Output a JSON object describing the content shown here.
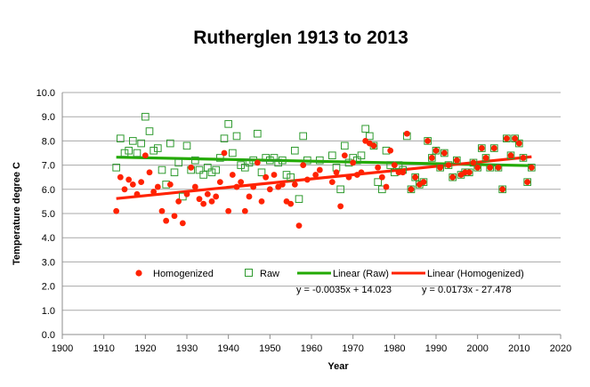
{
  "chart_data": {
    "type": "scatter",
    "title": "Rutherglen 1913 to 2013",
    "xlabel": "Year",
    "ylabel": "Temperature degree C",
    "xlim": [
      1900,
      2020
    ],
    "ylim": [
      0,
      10
    ],
    "x_ticks": [
      "1900",
      "1910",
      "1920",
      "1930",
      "1940",
      "1950",
      "1960",
      "1970",
      "1980",
      "1990",
      "2000",
      "2010",
      "2020"
    ],
    "y_ticks": [
      "0.0",
      "1.0",
      "2.0",
      "3.0",
      "4.0",
      "5.0",
      "6.0",
      "7.0",
      "8.0",
      "9.0",
      "10.0"
    ],
    "grid": true,
    "legend_position": "bottom-inside",
    "series": [
      {
        "name": "Homogenized",
        "marker": "filled-circle",
        "color": "#ff2200",
        "points": [
          [
            1913,
            5.1
          ],
          [
            1914,
            6.5
          ],
          [
            1915,
            6.0
          ],
          [
            1916,
            6.4
          ],
          [
            1917,
            6.2
          ],
          [
            1918,
            5.8
          ],
          [
            1919,
            6.3
          ],
          [
            1920,
            7.4
          ],
          [
            1921,
            6.7
          ],
          [
            1922,
            5.9
          ],
          [
            1923,
            6.1
          ],
          [
            1924,
            5.1
          ],
          [
            1925,
            4.7
          ],
          [
            1926,
            6.2
          ],
          [
            1927,
            4.9
          ],
          [
            1928,
            5.5
          ],
          [
            1929,
            4.6
          ],
          [
            1930,
            5.8
          ],
          [
            1931,
            6.9
          ],
          [
            1932,
            6.1
          ],
          [
            1933,
            5.6
          ],
          [
            1934,
            5.4
          ],
          [
            1935,
            5.8
          ],
          [
            1936,
            5.5
          ],
          [
            1937,
            5.7
          ],
          [
            1938,
            6.3
          ],
          [
            1939,
            7.5
          ],
          [
            1940,
            5.1
          ],
          [
            1941,
            6.6
          ],
          [
            1942,
            6.1
          ],
          [
            1943,
            6.3
          ],
          [
            1944,
            5.1
          ],
          [
            1945,
            5.7
          ],
          [
            1946,
            6.1
          ],
          [
            1947,
            7.1
          ],
          [
            1948,
            5.5
          ],
          [
            1949,
            6.5
          ],
          [
            1950,
            6.0
          ],
          [
            1951,
            6.6
          ],
          [
            1952,
            6.1
          ],
          [
            1953,
            6.2
          ],
          [
            1954,
            5.5
          ],
          [
            1955,
            5.4
          ],
          [
            1956,
            6.2
          ],
          [
            1957,
            4.5
          ],
          [
            1958,
            7.0
          ],
          [
            1959,
            6.4
          ],
          [
            1961,
            6.6
          ],
          [
            1962,
            6.8
          ],
          [
            1965,
            6.3
          ],
          [
            1966,
            6.7
          ],
          [
            1967,
            5.3
          ],
          [
            1968,
            7.4
          ],
          [
            1969,
            6.5
          ],
          [
            1970,
            7.1
          ],
          [
            1971,
            6.6
          ],
          [
            1972,
            6.7
          ],
          [
            1973,
            8.0
          ],
          [
            1974,
            7.9
          ],
          [
            1975,
            7.8
          ],
          [
            1976,
            6.9
          ],
          [
            1977,
            6.5
          ],
          [
            1978,
            6.1
          ],
          [
            1979,
            7.6
          ],
          [
            1980,
            7.0
          ],
          [
            1981,
            6.7
          ],
          [
            1982,
            6.7
          ],
          [
            1983,
            8.3
          ],
          [
            1984,
            6.0
          ],
          [
            1985,
            6.5
          ],
          [
            1986,
            6.2
          ],
          [
            1987,
            6.3
          ],
          [
            1988,
            8.0
          ],
          [
            1989,
            7.3
          ],
          [
            1990,
            7.6
          ],
          [
            1991,
            6.9
          ],
          [
            1992,
            7.5
          ],
          [
            1993,
            7.0
          ],
          [
            1994,
            6.5
          ],
          [
            1995,
            7.2
          ],
          [
            1996,
            6.6
          ],
          [
            1997,
            6.7
          ],
          [
            1998,
            6.7
          ],
          [
            1999,
            7.1
          ],
          [
            2000,
            6.9
          ],
          [
            2001,
            7.7
          ],
          [
            2002,
            7.3
          ],
          [
            2003,
            6.9
          ],
          [
            2004,
            7.7
          ],
          [
            2005,
            6.9
          ],
          [
            2006,
            6.0
          ],
          [
            2007,
            8.1
          ],
          [
            2008,
            7.4
          ],
          [
            2009,
            8.1
          ],
          [
            2010,
            7.9
          ],
          [
            2011,
            7.3
          ],
          [
            2012,
            6.3
          ],
          [
            2013,
            6.9
          ]
        ]
      },
      {
        "name": "Raw",
        "marker": "open-square",
        "color": "#2e9a2e",
        "points": [
          [
            1913,
            6.9
          ],
          [
            1914,
            8.1
          ],
          [
            1915,
            7.5
          ],
          [
            1916,
            7.6
          ],
          [
            1917,
            8.0
          ],
          [
            1918,
            7.5
          ],
          [
            1919,
            7.9
          ],
          [
            1920,
            9.0
          ],
          [
            1921,
            8.4
          ],
          [
            1922,
            7.6
          ],
          [
            1923,
            7.7
          ],
          [
            1924,
            6.8
          ],
          [
            1925,
            6.2
          ],
          [
            1926,
            7.9
          ],
          [
            1927,
            6.7
          ],
          [
            1928,
            7.1
          ],
          [
            1929,
            5.7
          ],
          [
            1930,
            7.8
          ],
          [
            1931,
            6.8
          ],
          [
            1932,
            7.2
          ],
          [
            1933,
            6.8
          ],
          [
            1934,
            6.6
          ],
          [
            1935,
            6.9
          ],
          [
            1936,
            6.7
          ],
          [
            1937,
            6.8
          ],
          [
            1938,
            7.3
          ],
          [
            1939,
            8.1
          ],
          [
            1940,
            8.7
          ],
          [
            1941,
            7.5
          ],
          [
            1942,
            8.2
          ],
          [
            1943,
            7.0
          ],
          [
            1944,
            6.9
          ],
          [
            1945,
            7.1
          ],
          [
            1946,
            7.2
          ],
          [
            1947,
            8.3
          ],
          [
            1948,
            6.7
          ],
          [
            1949,
            7.3
          ],
          [
            1950,
            7.2
          ],
          [
            1951,
            7.3
          ],
          [
            1952,
            7.1
          ],
          [
            1953,
            7.2
          ],
          [
            1954,
            6.6
          ],
          [
            1955,
            6.5
          ],
          [
            1956,
            7.6
          ],
          [
            1957,
            5.6
          ],
          [
            1958,
            8.2
          ],
          [
            1959,
            7.2
          ],
          [
            1962,
            7.2
          ],
          [
            1965,
            7.4
          ],
          [
            1966,
            6.9
          ],
          [
            1967,
            6.0
          ],
          [
            1968,
            7.8
          ],
          [
            1969,
            7.1
          ],
          [
            1970,
            7.3
          ],
          [
            1971,
            7.2
          ],
          [
            1972,
            7.4
          ],
          [
            1973,
            8.5
          ],
          [
            1974,
            8.2
          ],
          [
            1975,
            7.8
          ],
          [
            1976,
            6.3
          ],
          [
            1977,
            6.0
          ],
          [
            1978,
            7.6
          ],
          [
            1979,
            7.0
          ],
          [
            1980,
            6.7
          ],
          [
            1981,
            7.0
          ],
          [
            1982,
            6.8
          ],
          [
            1983,
            8.2
          ],
          [
            1984,
            6.0
          ],
          [
            1985,
            6.5
          ],
          [
            1986,
            6.2
          ],
          [
            1987,
            6.3
          ],
          [
            1988,
            8.0
          ],
          [
            1989,
            7.3
          ],
          [
            1990,
            7.6
          ],
          [
            1991,
            6.9
          ],
          [
            1992,
            7.5
          ],
          [
            1993,
            7.0
          ],
          [
            1994,
            6.5
          ],
          [
            1995,
            7.2
          ],
          [
            1996,
            6.6
          ],
          [
            1997,
            6.7
          ],
          [
            1998,
            6.7
          ],
          [
            1999,
            7.1
          ],
          [
            2000,
            6.9
          ],
          [
            2001,
            7.7
          ],
          [
            2002,
            7.3
          ],
          [
            2003,
            6.9
          ],
          [
            2004,
            7.7
          ],
          [
            2005,
            6.9
          ],
          [
            2006,
            6.0
          ],
          [
            2007,
            8.1
          ],
          [
            2008,
            7.4
          ],
          [
            2009,
            8.1
          ],
          [
            2010,
            7.9
          ],
          [
            2011,
            7.3
          ],
          [
            2012,
            6.3
          ],
          [
            2013,
            6.9
          ]
        ]
      }
    ],
    "trendlines": [
      {
        "name": "Linear (Raw)",
        "slope": -0.0035,
        "intercept": 14.023,
        "x_range": [
          1913,
          2013
        ],
        "color": "#22aa00",
        "equation": "y = -0.0035x + 14.023"
      },
      {
        "name": "Linear (Homogenized)",
        "slope": 0.0173,
        "intercept": -27.478,
        "x_range": [
          1913,
          2013
        ],
        "color": "#ff2200",
        "equation": "y = 0.0173x - 27.478"
      }
    ]
  }
}
